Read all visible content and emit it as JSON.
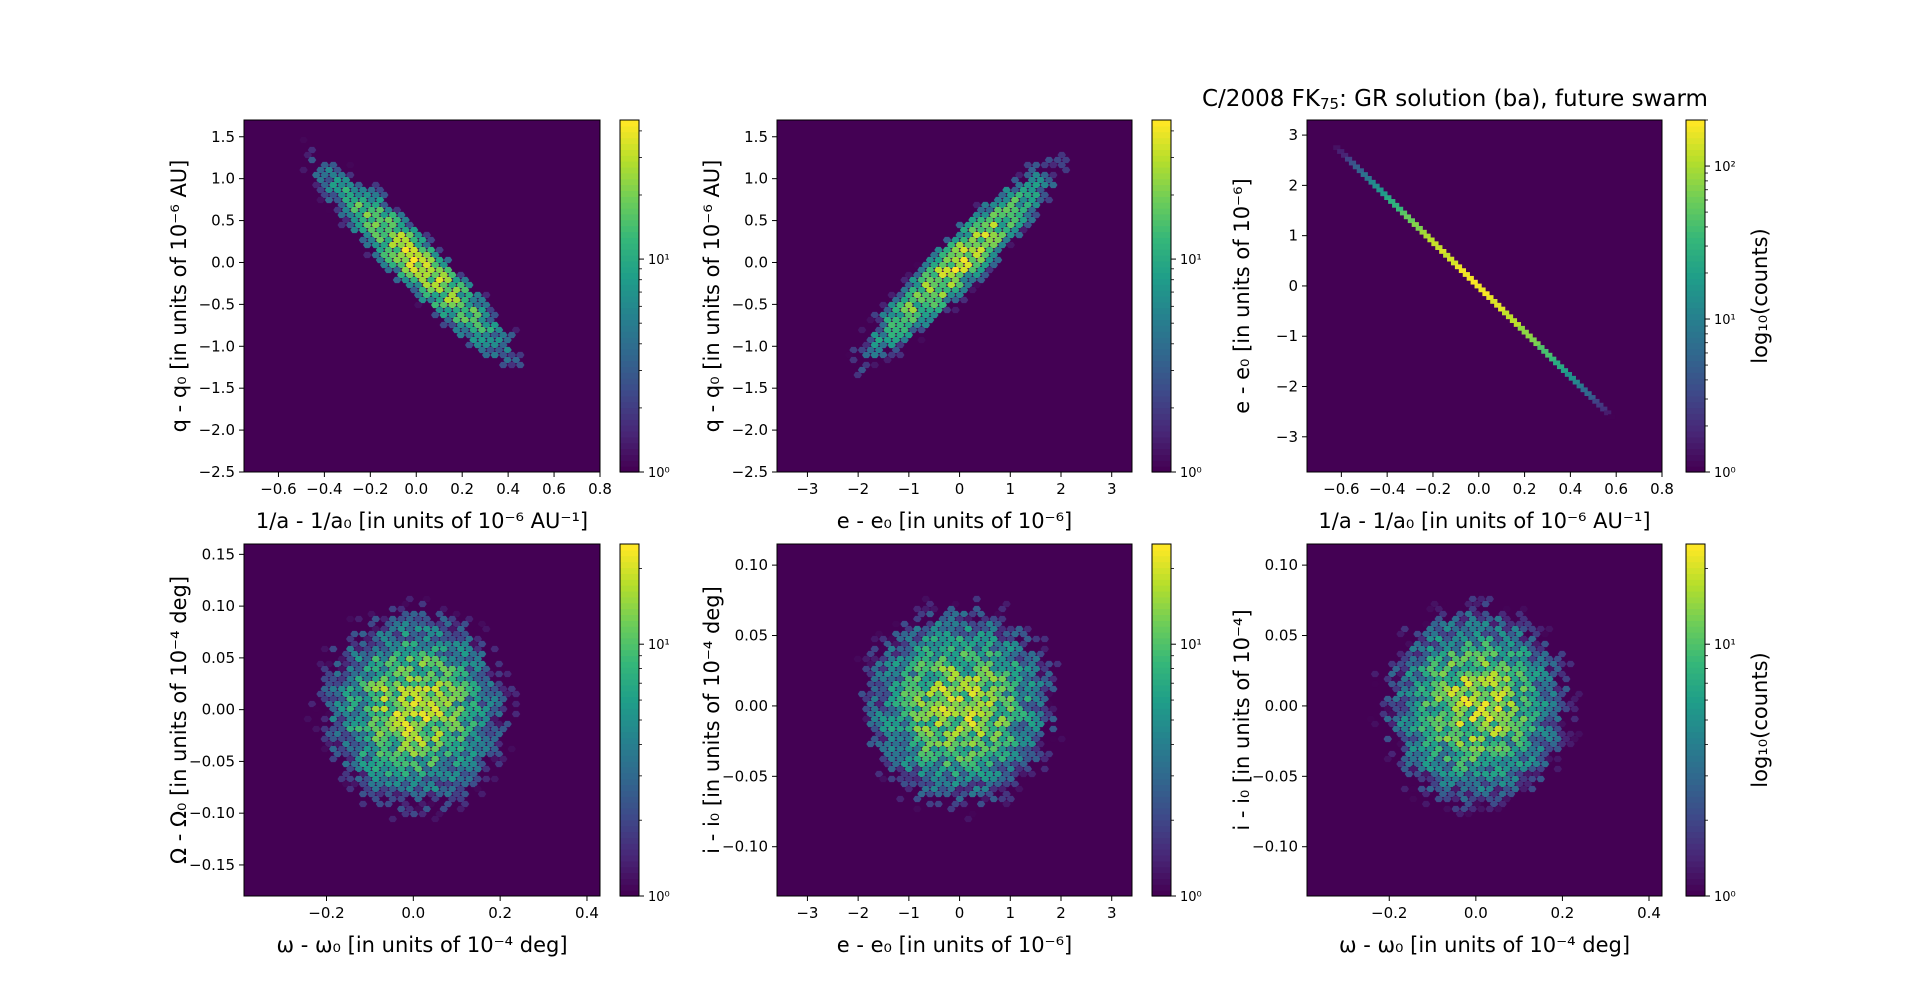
{
  "figure": {
    "title_prefix": "C/2008 FK",
    "title_subscript": "75",
    "title_suffix": ": GR solution (ba), future swarm"
  },
  "colors": {
    "background": "#440154",
    "colormap": "viridis"
  },
  "chart_data": [
    {
      "type": "heatmap",
      "subtype": "hexbin",
      "xlabel": "1/a - 1/a₀ [in units of 10⁻⁶ AU⁻¹]",
      "ylabel": "q - q₀ [in units of 10⁻⁶ AU]",
      "xlim": [
        -0.75,
        0.8
      ],
      "ylim": [
        -2.5,
        1.7
      ],
      "xticks": [
        -0.6,
        -0.4,
        -0.2,
        0.0,
        0.2,
        0.4,
        0.6,
        0.8
      ],
      "yticks": [
        -2.5,
        -2.0,
        -1.5,
        -1.0,
        -0.5,
        0.0,
        0.5,
        1.0,
        1.5
      ],
      "x_center": 0.0,
      "y_center": 0.0,
      "x_sigma": 0.2,
      "y_sigma": 0.55,
      "correlation": -0.93,
      "colorbar": {
        "scale": "log",
        "range": [
          1,
          45
        ],
        "ticks": [
          "10⁰",
          "10¹"
        ],
        "label": ""
      }
    },
    {
      "type": "heatmap",
      "subtype": "hexbin",
      "xlabel": "e - e₀ [in units of 10⁻⁶]",
      "ylabel": "q - q₀ [in units of 10⁻⁶ AU]",
      "xlim": [
        -3.6,
        3.4
      ],
      "ylim": [
        -2.5,
        1.7
      ],
      "xticks": [
        -3,
        -2,
        -1,
        0,
        1,
        2,
        3
      ],
      "yticks": [
        -2.5,
        -2.0,
        -1.5,
        -1.0,
        -0.5,
        0.0,
        0.5,
        1.0,
        1.5
      ],
      "x_center": 0.0,
      "y_center": 0.0,
      "x_sigma": 0.9,
      "y_sigma": 0.55,
      "correlation": 0.93,
      "colorbar": {
        "scale": "log",
        "range": [
          1,
          45
        ],
        "ticks": [
          "10⁰",
          "10¹"
        ],
        "label": ""
      }
    },
    {
      "type": "heatmap",
      "subtype": "hexbin",
      "xlabel": "1/a - 1/a₀ [in units of 10⁻⁶ AU⁻¹]",
      "ylabel": "e - e₀ [in units of 10⁻⁶]",
      "xlim": [
        -0.75,
        0.8
      ],
      "ylim": [
        -3.7,
        3.3
      ],
      "xticks": [
        -0.6,
        -0.4,
        -0.2,
        0.0,
        0.2,
        0.4,
        0.6,
        0.8
      ],
      "yticks": [
        -3,
        -2,
        -1,
        0,
        1,
        2,
        3
      ],
      "line_from": [
        -0.62,
        2.75
      ],
      "line_to": [
        0.58,
        -2.6
      ],
      "colorbar": {
        "scale": "log",
        "range": [
          1,
          200
        ],
        "ticks": [
          "10⁰",
          "10¹",
          "10²"
        ],
        "label": "log₁₀(counts)"
      }
    },
    {
      "type": "heatmap",
      "subtype": "hexbin",
      "xlabel": "ω - ω₀ [in units of 10⁻⁴ deg]",
      "ylabel": "Ω - Ω₀ [in units of 10⁻⁴ deg]",
      "xlim": [
        -0.39,
        0.43
      ],
      "ylim": [
        -0.18,
        0.16
      ],
      "xticks": [
        -0.2,
        0.0,
        0.2,
        0.4
      ],
      "yticks": [
        -0.15,
        -0.1,
        -0.05,
        0.0,
        0.05,
        0.1,
        0.15
      ],
      "x_center": 0.0,
      "y_center": 0.0,
      "x_sigma": 0.1,
      "y_sigma": 0.045,
      "correlation": 0.0,
      "colorbar": {
        "scale": "log",
        "range": [
          1,
          25
        ],
        "ticks": [
          "10⁰",
          "10¹"
        ],
        "label": ""
      }
    },
    {
      "type": "heatmap",
      "subtype": "hexbin",
      "xlabel": "e - e₀ [in units of 10⁻⁶]",
      "ylabel": "i - i₀ [in units of 10⁻⁴ deg]",
      "xlim": [
        -3.6,
        3.4
      ],
      "ylim": [
        -0.135,
        0.115
      ],
      "xticks": [
        -3,
        -2,
        -1,
        0,
        1,
        2,
        3
      ],
      "yticks": [
        -0.1,
        -0.05,
        0.0,
        0.05,
        0.1
      ],
      "x_center": 0.0,
      "y_center": 0.0,
      "x_sigma": 0.9,
      "y_sigma": 0.033,
      "correlation": 0.0,
      "colorbar": {
        "scale": "log",
        "range": [
          1,
          25
        ],
        "ticks": [
          "10⁰",
          "10¹"
        ],
        "label": ""
      }
    },
    {
      "type": "heatmap",
      "subtype": "hexbin",
      "xlabel": "ω - ω₀ [in units of 10⁻⁴ deg]",
      "ylabel": "i - i₀ [in units of 10⁻⁴]",
      "xlim": [
        -0.39,
        0.43
      ],
      "ylim": [
        -0.135,
        0.115
      ],
      "xticks": [
        -0.2,
        0.0,
        0.2,
        0.4
      ],
      "yticks": [
        -0.1,
        -0.05,
        0.0,
        0.05,
        0.1
      ],
      "x_center": 0.0,
      "y_center": 0.0,
      "x_sigma": 0.1,
      "y_sigma": 0.033,
      "correlation": 0.0,
      "colorbar": {
        "scale": "log",
        "range": [
          1,
          25
        ],
        "ticks": [
          "10⁰",
          "10¹"
        ],
        "label": "log₁₀(counts)"
      }
    }
  ]
}
